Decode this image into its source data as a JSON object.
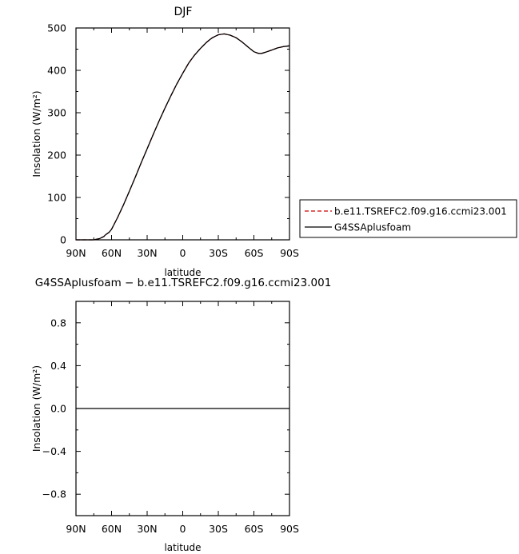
{
  "chart_data": [
    {
      "type": "line",
      "title": "DJF",
      "xlabel": "latitude",
      "ylabel": "Insolation (W/m²)",
      "xlim": [
        90,
        -90
      ],
      "ylim": [
        0,
        500
      ],
      "x_ticks": [
        {
          "value": 90,
          "label": "90N"
        },
        {
          "value": 60,
          "label": "60N"
        },
        {
          "value": 30,
          "label": "30N"
        },
        {
          "value": 0,
          "label": "0"
        },
        {
          "value": -30,
          "label": "30S"
        },
        {
          "value": -60,
          "label": "60S"
        },
        {
          "value": -90,
          "label": "90S"
        }
      ],
      "y_ticks": [
        0,
        100,
        200,
        300,
        400,
        500
      ],
      "x": [
        90,
        80,
        75,
        70,
        66.5,
        65,
        62,
        60,
        55,
        50,
        45,
        40,
        35,
        30,
        25,
        20,
        15,
        10,
        5,
        0,
        -5,
        -10,
        -15,
        -20,
        -23.5,
        -25,
        -30,
        -35,
        -40,
        -45,
        -50,
        -55,
        -60,
        -64,
        -66.5,
        -70,
        -75,
        -80,
        -85,
        -90
      ],
      "series": [
        {
          "name": "b.e11.TSREFC2.f09.g16.ccmi23.001",
          "color": "#cc0000",
          "dash": "dashed",
          "values": [
            0,
            0,
            0,
            3,
            8,
            12,
            18,
            25,
            52,
            82,
            115,
            148,
            182,
            215,
            248,
            280,
            311,
            340,
            368,
            393,
            417,
            436,
            452,
            466,
            474,
            477,
            484,
            486,
            483,
            477,
            467,
            455,
            444,
            440,
            440,
            443,
            448,
            453,
            456,
            458
          ]
        },
        {
          "name": "G4SSAplusfoam",
          "color": "#000000",
          "dash": "solid",
          "values": [
            0,
            0,
            0,
            3,
            8,
            12,
            18,
            25,
            52,
            82,
            115,
            148,
            182,
            215,
            248,
            280,
            311,
            340,
            368,
            393,
            417,
            436,
            452,
            466,
            474,
            477,
            484,
            486,
            483,
            477,
            467,
            455,
            444,
            440,
            440,
            443,
            448,
            453,
            456,
            458
          ]
        }
      ],
      "legend": "right"
    },
    {
      "type": "line",
      "title": "G4SSAplusfoam − b.e11.TSREFC2.f09.g16.ccmi23.001",
      "xlabel": "latitude",
      "ylabel": "Insolation (W/m²)",
      "xlim": [
        90,
        -90
      ],
      "ylim": [
        -1,
        1
      ],
      "x_ticks": [
        {
          "value": 90,
          "label": "90N"
        },
        {
          "value": 60,
          "label": "60N"
        },
        {
          "value": 30,
          "label": "30N"
        },
        {
          "value": 0,
          "label": "0"
        },
        {
          "value": -30,
          "label": "30S"
        },
        {
          "value": -60,
          "label": "60S"
        },
        {
          "value": -90,
          "label": "90S"
        }
      ],
      "y_ticks": [
        0.8,
        0.4,
        0.0,
        -0.4,
        -0.8
      ],
      "y_tick_labels": [
        "0.8",
        "0.4",
        "0.0",
        "−0.4",
        "−0.8"
      ],
      "x": [
        90,
        -90
      ],
      "series": [
        {
          "color": "#000000",
          "dash": "solid",
          "values": [
            0,
            0
          ]
        }
      ]
    }
  ]
}
